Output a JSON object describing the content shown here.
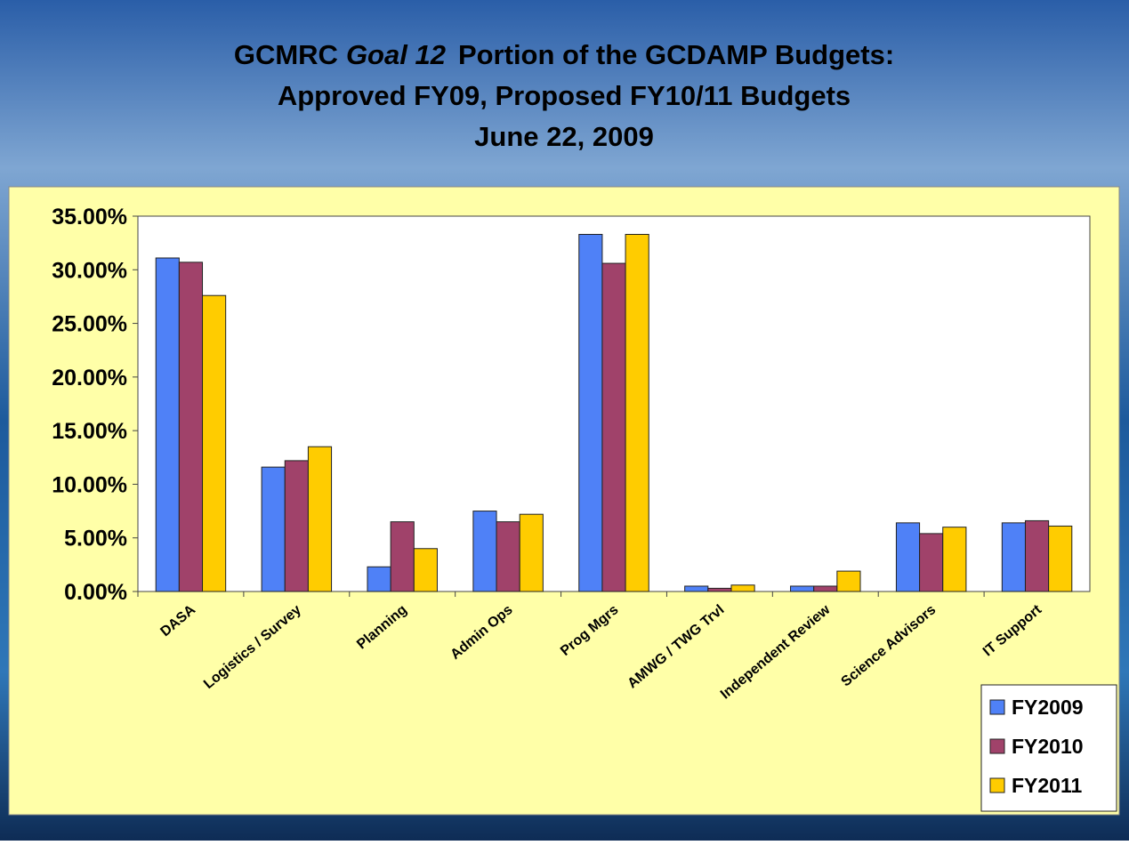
{
  "chart_data": {
    "type": "bar",
    "title": {
      "line1": [
        "GCMRC",
        "Goal 12",
        "Portion of the GCDAMP Budgets:"
      ],
      "line2": "Approved FY09, Proposed FY10/11 Budgets",
      "line3": "June 22, 2009"
    },
    "categories": [
      "DASA",
      "Logistics / Survey",
      "Planning",
      "Admin Ops",
      "Prog Mgrs",
      "AMWG / TWG Trvl",
      "Independent Review",
      "Science Advisors",
      "IT Support"
    ],
    "series": [
      {
        "name": "FY2009",
        "color": "#4f81f7",
        "values": [
          31.1,
          11.6,
          2.3,
          7.5,
          33.3,
          0.5,
          0.5,
          6.4,
          6.4
        ]
      },
      {
        "name": "FY2010",
        "color": "#a0426a",
        "values": [
          30.7,
          12.2,
          6.5,
          6.5,
          30.6,
          0.3,
          0.5,
          5.4,
          6.6
        ]
      },
      {
        "name": "FY2011",
        "color": "#ffcc00",
        "values": [
          27.6,
          13.5,
          4.0,
          7.2,
          33.3,
          0.6,
          1.9,
          6.0,
          6.1
        ]
      }
    ],
    "ylim": [
      0,
      35
    ],
    "yticks": [
      {
        "value": 0,
        "label": "0.00%"
      },
      {
        "value": 5,
        "label": "5.00%"
      },
      {
        "value": 10,
        "label": "10.00%"
      },
      {
        "value": 15,
        "label": "15.00%"
      },
      {
        "value": 20,
        "label": "20.00%"
      },
      {
        "value": 25,
        "label": "25.00%"
      },
      {
        "value": 30,
        "label": "30.00%"
      },
      {
        "value": 35,
        "label": "35.00%"
      }
    ],
    "legend": "bottom-right"
  }
}
